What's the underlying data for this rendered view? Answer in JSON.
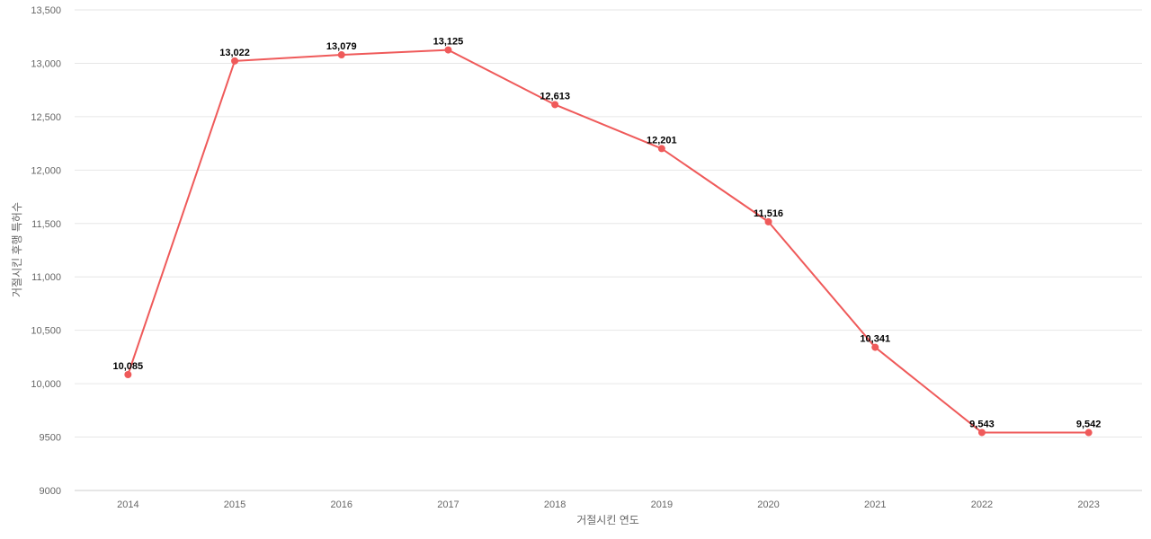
{
  "chart_data": {
    "type": "line",
    "title": "",
    "xlabel": "거절시킨 연도",
    "ylabel": "거절시킨 후행 특허수",
    "categories": [
      "2014",
      "2015",
      "2016",
      "2017",
      "2018",
      "2019",
      "2020",
      "2021",
      "2022",
      "2023"
    ],
    "series": [
      {
        "values": [
          10085,
          13022,
          13079,
          13125,
          12613,
          12201,
          11516,
          10341,
          9543,
          9542
        ],
        "labels": [
          "10,085",
          "13,022",
          "13,079",
          "13,125",
          "12,613",
          "12,201",
          "11,516",
          "10,341",
          "9,543",
          "9,542"
        ],
        "color": "#ef5a5a"
      }
    ],
    "ylim": [
      9000,
      13500
    ],
    "y_ticks": [
      {
        "value": 9000,
        "label": "9000"
      },
      {
        "value": 9500,
        "label": "9500"
      },
      {
        "value": 10000,
        "label": "10,000"
      },
      {
        "value": 10500,
        "label": "10,500"
      },
      {
        "value": 11000,
        "label": "11,000"
      },
      {
        "value": 11500,
        "label": "11,500"
      },
      {
        "value": 12000,
        "label": "12,000"
      },
      {
        "value": 12500,
        "label": "12,500"
      },
      {
        "value": 13000,
        "label": "13,000"
      },
      {
        "value": 13500,
        "label": "13,500"
      }
    ],
    "grid": true,
    "legend": "none",
    "colors": {
      "grid": "#e6e6e6",
      "axis_line": "#cccccc",
      "tick_text": "#666666",
      "label_text": "#000000"
    }
  }
}
